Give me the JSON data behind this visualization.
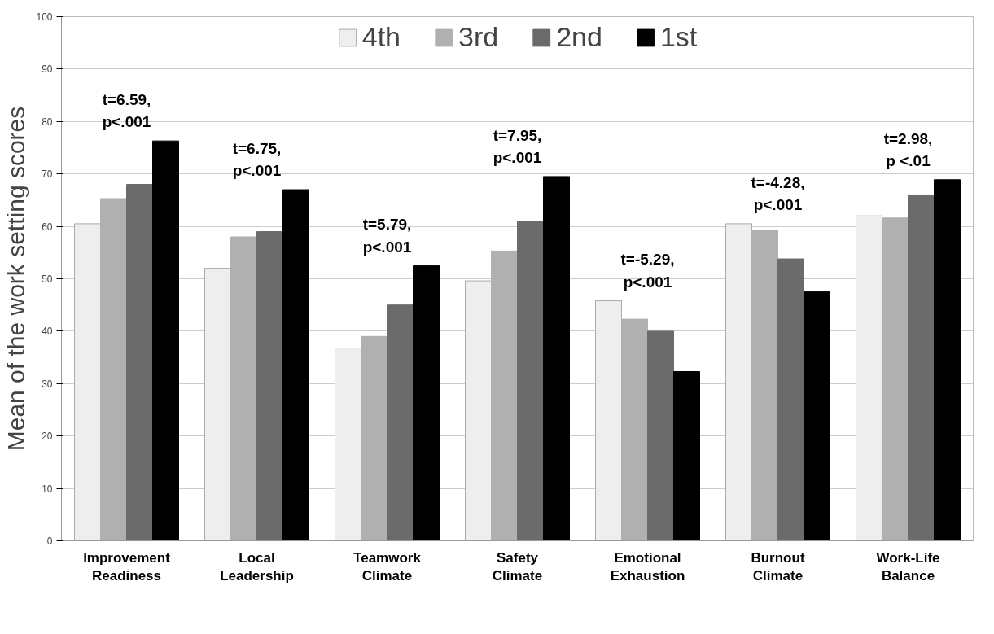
{
  "chart_data": {
    "type": "bar",
    "ylabel": "Mean of the work setting scores",
    "categories": [
      "Improvement\nReadiness",
      "Local\nLeadership",
      "Teamwork\nClimate",
      "Safety\nClimate",
      "Emotional\nExhaustion",
      "Burnout\nClimate",
      "Work-Life\nBalance"
    ],
    "series": [
      {
        "name": "4th",
        "color": "#eeeeee",
        "values": [
          60.5,
          52,
          36.8,
          49.6,
          45.8,
          60.5,
          62
        ]
      },
      {
        "name": "3rd",
        "color": "#b0b0b0",
        "values": [
          65.3,
          58,
          39,
          55.3,
          42.3,
          59.3,
          61.6
        ]
      },
      {
        "name": "2nd",
        "color": "#6b6b6b",
        "values": [
          68,
          59,
          45,
          61,
          40,
          53.8,
          66
        ]
      },
      {
        "name": "1st",
        "color": "#000000",
        "values": [
          76.3,
          67,
          52.5,
          69.5,
          32.3,
          47.5,
          68.9
        ]
      }
    ],
    "ylim": [
      0,
      100
    ],
    "yticks": [
      0,
      10,
      20,
      30,
      40,
      50,
      60,
      70,
      80,
      90,
      100
    ],
    "grid": "y",
    "legend": "top",
    "annotations": [
      "t=6.59,\np<.001",
      "t=6.75,\np<.001",
      "t=5.79,\np<.001",
      "t=7.95,\np<.001",
      "t=-5.29,\np<.001",
      "t=-4.28,\np<.001",
      "t=2.98,\np <.01"
    ]
  }
}
